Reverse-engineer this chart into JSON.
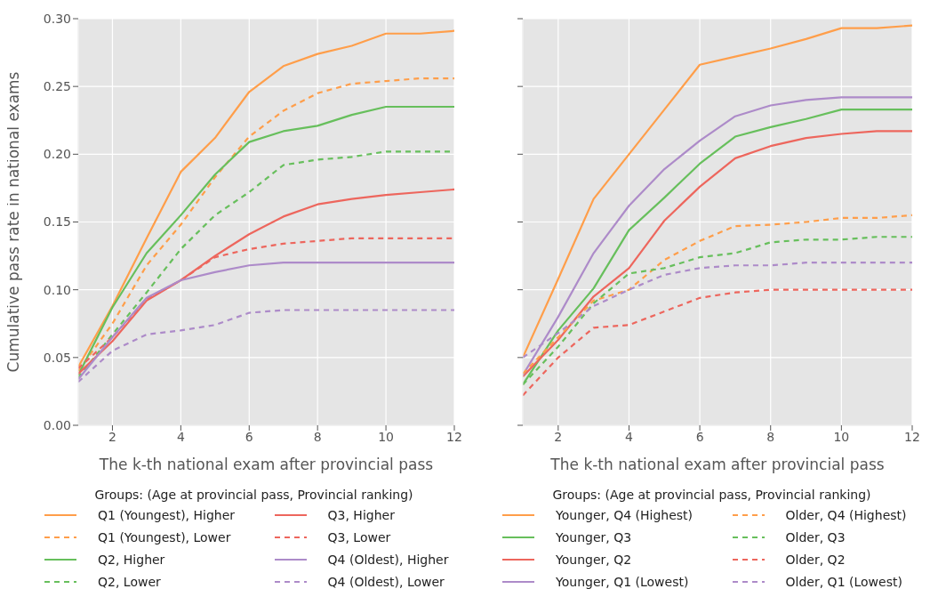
{
  "chart_data": [
    {
      "type": "line",
      "ylabel": "Cumulative pass rate in national exams",
      "xlabel": "The k-th national exam after provincial pass",
      "legend_title": "Groups: (Age at provincial pass, Provincial ranking)",
      "legend": "bottom",
      "grid": true,
      "x": [
        1,
        2,
        3,
        4,
        5,
        6,
        7,
        8,
        9,
        10,
        11,
        12
      ],
      "xlim": [
        1,
        12
      ],
      "xticks": [
        2,
        4,
        6,
        8,
        10,
        12
      ],
      "ylim": [
        0,
        0.3
      ],
      "yticks": [
        {
          "value": 0,
          "label": "0.00"
        },
        {
          "value": 0.05,
          "label": "0.05"
        },
        {
          "value": 0.1,
          "label": "0.10"
        },
        {
          "value": 0.15,
          "label": "0.15"
        },
        {
          "value": 0.2,
          "label": "0.20"
        },
        {
          "value": 0.25,
          "label": "0.25"
        },
        {
          "value": 0.3,
          "label": "0.30"
        }
      ],
      "series": [
        {
          "name": "Q1 (Youngest), Higher",
          "color": "#ff9e4a",
          "line_style": "solid",
          "values": [
            0.043,
            0.088,
            0.138,
            0.187,
            0.212,
            0.246,
            0.265,
            0.274,
            0.28,
            0.289,
            0.289,
            0.291
          ]
        },
        {
          "name": "Q1 (Youngest), Lower",
          "color": "#ff9e4a",
          "line_style": "dashed",
          "values": [
            0.04,
            0.075,
            0.118,
            0.148,
            0.183,
            0.213,
            0.232,
            0.245,
            0.252,
            0.254,
            0.256,
            0.256
          ]
        },
        {
          "name": "Q2, Higher",
          "color": "#67bf5c",
          "line_style": "solid",
          "values": [
            0.037,
            0.087,
            0.127,
            0.155,
            0.185,
            0.209,
            0.217,
            0.221,
            0.229,
            0.235,
            0.235,
            0.235
          ]
        },
        {
          "name": "Q2, Lower",
          "color": "#67bf5c",
          "line_style": "dashed",
          "values": [
            0.035,
            0.067,
            0.098,
            0.13,
            0.155,
            0.172,
            0.192,
            0.196,
            0.198,
            0.202,
            0.202,
            0.202
          ]
        },
        {
          "name": "Q3, Higher",
          "color": "#ed665d",
          "line_style": "solid",
          "values": [
            0.038,
            0.062,
            0.092,
            0.107,
            0.125,
            0.141,
            0.154,
            0.163,
            0.167,
            0.17,
            0.172,
            0.174
          ]
        },
        {
          "name": "Q3, Lower",
          "color": "#ed665d",
          "line_style": "dashed",
          "values": [
            0.042,
            0.065,
            0.093,
            0.107,
            0.124,
            0.13,
            0.134,
            0.136,
            0.138,
            0.138,
            0.138,
            0.138
          ]
        },
        {
          "name": "Q4 (Oldest), Higher",
          "color": "#ad8bc9",
          "line_style": "solid",
          "values": [
            0.034,
            0.065,
            0.094,
            0.107,
            0.113,
            0.118,
            0.12,
            0.12,
            0.12,
            0.12,
            0.12,
            0.12
          ]
        },
        {
          "name": "Q4 (Oldest), Lower",
          "color": "#ad8bc9",
          "line_style": "dashed",
          "values": [
            0.032,
            0.055,
            0.067,
            0.07,
            0.074,
            0.083,
            0.085,
            0.085,
            0.085,
            0.085,
            0.085,
            0.085
          ]
        }
      ]
    },
    {
      "type": "line",
      "xlabel": "The k-th national exam after provincial pass",
      "legend_title": "Groups: (Age at provincial pass, Provincial ranking)",
      "legend": "bottom",
      "grid": true,
      "tick_labels": "x",
      "x": [
        1,
        2,
        3,
        4,
        5,
        6,
        7,
        8,
        9,
        10,
        11,
        12
      ],
      "xlim": [
        1,
        12
      ],
      "xticks": [
        2,
        4,
        6,
        8,
        10,
        12
      ],
      "ylim": [
        0,
        0.3
      ],
      "yticks": [
        0,
        0.05,
        0.1,
        0.15,
        0.2,
        0.25,
        0.3
      ],
      "series": [
        {
          "name": "Younger, Q4 (Highest)",
          "color": "#ff9e4a",
          "line_style": "solid",
          "values": [
            0.05,
            0.108,
            0.167,
            0.2,
            0.233,
            0.266,
            0.272,
            0.278,
            0.285,
            0.293,
            0.293,
            0.295
          ]
        },
        {
          "name": "Younger, Q3",
          "color": "#67bf5c",
          "line_style": "solid",
          "values": [
            0.03,
            0.07,
            0.101,
            0.144,
            0.168,
            0.193,
            0.213,
            0.22,
            0.226,
            0.233,
            0.233,
            0.233
          ]
        },
        {
          "name": "Younger, Q2",
          "color": "#ed665d",
          "line_style": "solid",
          "values": [
            0.036,
            0.063,
            0.095,
            0.116,
            0.151,
            0.176,
            0.197,
            0.206,
            0.212,
            0.215,
            0.217,
            0.217
          ]
        },
        {
          "name": "Younger, Q1 (Lowest)",
          "color": "#ad8bc9",
          "line_style": "solid",
          "values": [
            0.037,
            0.08,
            0.127,
            0.162,
            0.189,
            0.21,
            0.228,
            0.236,
            0.24,
            0.242,
            0.242,
            0.242
          ]
        },
        {
          "name": "Older, Q4 (Highest)",
          "color": "#ff9e4a",
          "line_style": "dashed",
          "values": [
            0.038,
            0.065,
            0.092,
            0.1,
            0.122,
            0.136,
            0.147,
            0.148,
            0.15,
            0.153,
            0.153,
            0.155
          ]
        },
        {
          "name": "Older, Q3",
          "color": "#67bf5c",
          "line_style": "dashed",
          "values": [
            0.03,
            0.058,
            0.09,
            0.112,
            0.116,
            0.124,
            0.127,
            0.135,
            0.137,
            0.137,
            0.139,
            0.139
          ]
        },
        {
          "name": "Older, Q2",
          "color": "#ed665d",
          "line_style": "dashed",
          "values": [
            0.022,
            0.05,
            0.072,
            0.074,
            0.084,
            0.094,
            0.098,
            0.1,
            0.1,
            0.1,
            0.1,
            0.1
          ]
        },
        {
          "name": "Older, Q1 (Lowest)",
          "color": "#ad8bc9",
          "line_style": "dashed",
          "values": [
            0.05,
            0.068,
            0.088,
            0.1,
            0.111,
            0.116,
            0.118,
            0.118,
            0.12,
            0.12,
            0.12,
            0.12
          ]
        }
      ]
    }
  ]
}
